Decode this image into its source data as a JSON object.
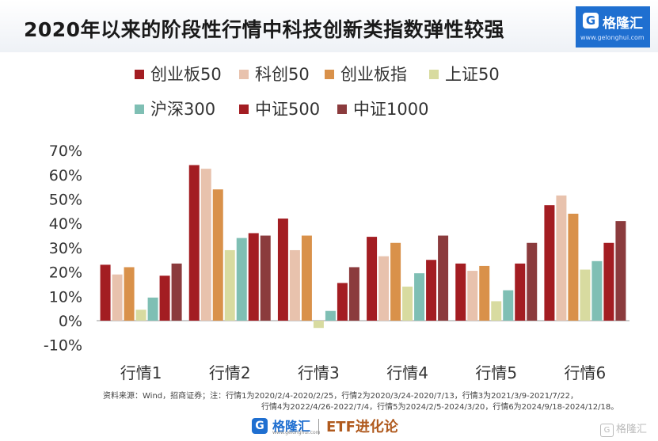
{
  "header": {
    "title": "2020年以来的阶段性行情中科技创新类指数弹性较强",
    "brand": {
      "icon": "G",
      "name": "格隆汇",
      "url": "www.gelonghui.com"
    }
  },
  "chart_data": {
    "type": "bar",
    "categories": [
      "行情1",
      "行情2",
      "行情3",
      "行情4",
      "行情5",
      "行情6"
    ],
    "series": [
      {
        "name": "创业板50",
        "color": "#a31d22",
        "values": [
          23,
          64,
          42,
          34.5,
          23.5,
          47.5
        ]
      },
      {
        "name": "科创50",
        "color": "#e8c2ad",
        "values": [
          19,
          62.5,
          29,
          26.5,
          20.5,
          51.5
        ]
      },
      {
        "name": "创业板指",
        "color": "#d9914a",
        "values": [
          22,
          54,
          35,
          32,
          22.5,
          44
        ]
      },
      {
        "name": "上证50",
        "color": "#d8dba0",
        "values": [
          4.5,
          29,
          -3,
          14,
          8,
          21
        ]
      },
      {
        "name": "沪深300",
        "color": "#7fbfb4",
        "values": [
          9.5,
          34,
          4,
          19.5,
          12.5,
          24.5
        ]
      },
      {
        "name": "中证500",
        "color": "#a31d22",
        "values": [
          18.5,
          36,
          15.5,
          25,
          23.5,
          32
        ]
      },
      {
        "name": "中证1000",
        "color": "#8b3b3d",
        "values": [
          23.5,
          35,
          22,
          35,
          32,
          41
        ]
      }
    ],
    "ylim": [
      -10,
      70
    ],
    "yticks": [
      -10,
      0,
      10,
      20,
      30,
      40,
      50,
      60,
      70
    ],
    "ytick_labels": [
      "-10%",
      "0%",
      "10%",
      "20%",
      "30%",
      "40%",
      "50%",
      "60%",
      "70%"
    ],
    "legend_position": "top",
    "grid": false
  },
  "note": {
    "line1": "资料来源：Wind，招商证券；注：行情1为2020/2/4-2020/2/25，行情2为2020/3/24-2020/7/13，行情3为2021/3/9-2021/7/22，",
    "line2": "行情4为2022/4/26-2022/7/4，行情5为2024/2/5-2024/3/20，行情6为2024/9/18-2024/12/18。"
  },
  "footer": {
    "logo_icon": "G",
    "logo_name": "格隆汇",
    "logo_url": "www.gelonghui.com",
    "channel": "ETF进化论",
    "watermark_icon": "G",
    "watermark": "格隆汇"
  }
}
